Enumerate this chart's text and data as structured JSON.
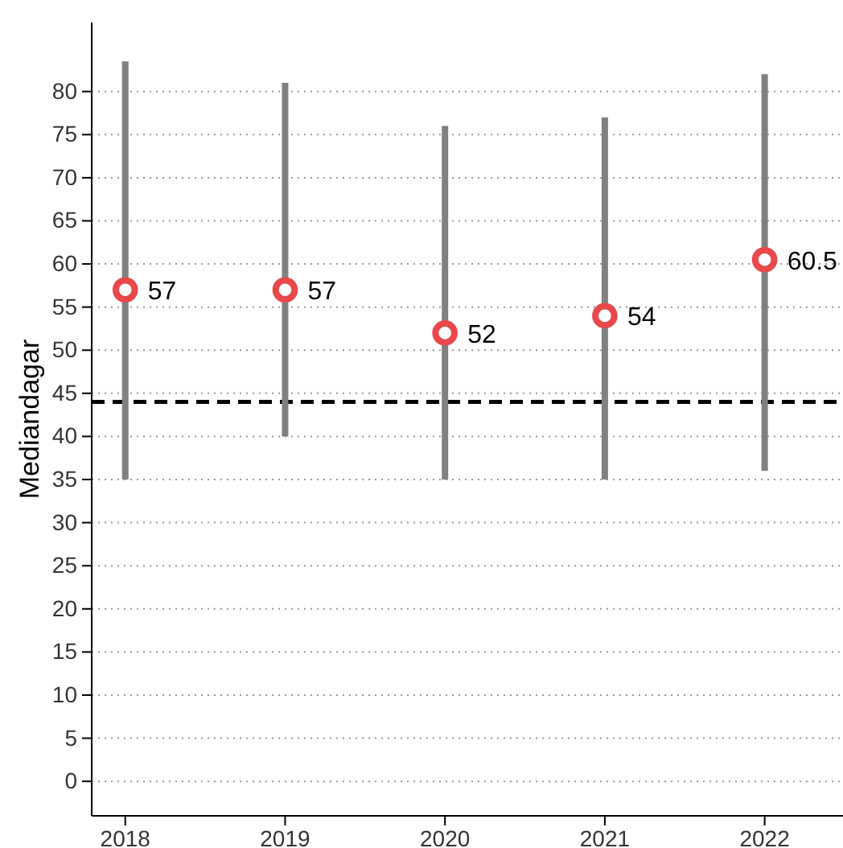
{
  "chart_data": {
    "type": "scatter",
    "ylabel": "Mediandagar",
    "categories": [
      "2018",
      "2019",
      "2020",
      "2021",
      "2022"
    ],
    "series": [
      {
        "color": "#e8484a",
        "values": [
          57,
          57,
          52,
          54,
          60.5
        ],
        "errors": [
          [
            35,
            83.5
          ],
          [
            40,
            81
          ],
          [
            35,
            76
          ],
          [
            35,
            77
          ],
          [
            36,
            82
          ]
        ]
      }
    ],
    "ylim": [
      -4,
      88
    ],
    "yticks": [
      0,
      5,
      10,
      15,
      20,
      25,
      30,
      35,
      40,
      45,
      50,
      55,
      60,
      65,
      70,
      75,
      80
    ],
    "grid": "y",
    "marker": "circle",
    "data_labels": true,
    "ref_lines": [
      {
        "axis": "y",
        "value": 44,
        "color": "#000000",
        "line_style": "dashed"
      }
    ]
  }
}
